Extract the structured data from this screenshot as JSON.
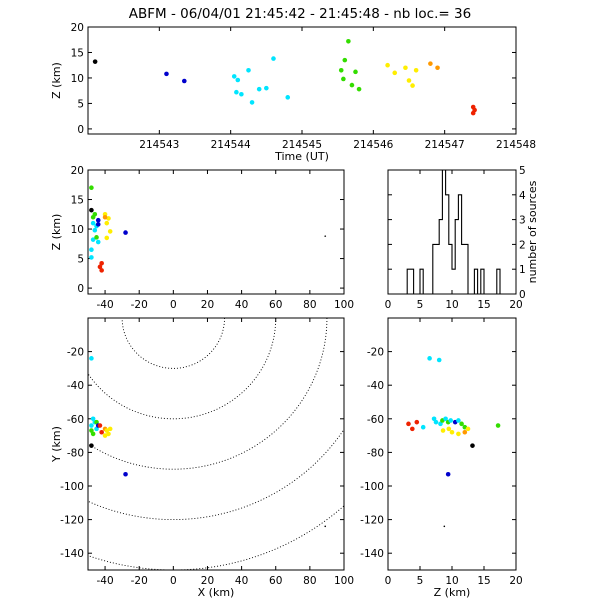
{
  "header": {
    "title": "ABFM - 06/04/01 21:45:42 - 21:45:48 - nb loc.=      36"
  },
  "colors": {
    "black": "#000000",
    "blue": "#0000cc",
    "cyan": "#00e5ff",
    "green": "#33dd00",
    "yellow": "#ffee00",
    "orange": "#ff9900",
    "red": "#ee2200"
  },
  "chart_data": [
    {
      "id": "time-height",
      "type": "scatter",
      "xlabel": "Time (UT)",
      "ylabel": "Z (km)",
      "xlim": [
        214542,
        214548
      ],
      "ylim": [
        -1,
        20
      ],
      "xticks": [
        214543,
        214544,
        214545,
        214546,
        214547,
        214548
      ],
      "yticks": [
        0,
        5,
        10,
        15,
        20
      ],
      "points": [
        {
          "x": 214542.1,
          "y": 13.2,
          "c": "black"
        },
        {
          "x": 214543.1,
          "y": 10.8,
          "c": "blue"
        },
        {
          "x": 214543.35,
          "y": 9.4,
          "c": "blue"
        },
        {
          "x": 214544.05,
          "y": 10.3,
          "c": "cyan"
        },
        {
          "x": 214544.1,
          "y": 9.6,
          "c": "cyan"
        },
        {
          "x": 214544.08,
          "y": 7.2,
          "c": "cyan"
        },
        {
          "x": 214544.15,
          "y": 6.8,
          "c": "cyan"
        },
        {
          "x": 214544.25,
          "y": 11.5,
          "c": "cyan"
        },
        {
          "x": 214544.3,
          "y": 5.2,
          "c": "cyan"
        },
        {
          "x": 214544.4,
          "y": 7.8,
          "c": "cyan"
        },
        {
          "x": 214544.5,
          "y": 8.0,
          "c": "cyan"
        },
        {
          "x": 214544.6,
          "y": 13.8,
          "c": "cyan"
        },
        {
          "x": 214544.8,
          "y": 6.2,
          "c": "cyan"
        },
        {
          "x": 214545.55,
          "y": 11.5,
          "c": "green"
        },
        {
          "x": 214545.6,
          "y": 13.5,
          "c": "green"
        },
        {
          "x": 214545.65,
          "y": 17.2,
          "c": "green"
        },
        {
          "x": 214545.58,
          "y": 9.8,
          "c": "green"
        },
        {
          "x": 214545.7,
          "y": 8.6,
          "c": "green"
        },
        {
          "x": 214545.75,
          "y": 11.2,
          "c": "green"
        },
        {
          "x": 214545.8,
          "y": 7.8,
          "c": "green"
        },
        {
          "x": 214546.2,
          "y": 12.5,
          "c": "yellow"
        },
        {
          "x": 214546.3,
          "y": 11.0,
          "c": "yellow"
        },
        {
          "x": 214546.45,
          "y": 12.0,
          "c": "yellow"
        },
        {
          "x": 214546.5,
          "y": 9.5,
          "c": "yellow"
        },
        {
          "x": 214546.55,
          "y": 8.5,
          "c": "yellow"
        },
        {
          "x": 214546.6,
          "y": 11.5,
          "c": "yellow"
        },
        {
          "x": 214546.8,
          "y": 12.8,
          "c": "orange"
        },
        {
          "x": 214546.9,
          "y": 12.0,
          "c": "orange"
        },
        {
          "x": 214547.4,
          "y": 4.3,
          "c": "red"
        },
        {
          "x": 214547.42,
          "y": 3.7,
          "c": "red"
        },
        {
          "x": 214547.4,
          "y": 3.1,
          "c": "red"
        }
      ]
    },
    {
      "id": "x-height",
      "type": "scatter",
      "xlabel": "",
      "ylabel": "Z (km)",
      "xlim": [
        -50,
        100
      ],
      "ylim": [
        -1,
        20
      ],
      "xticks": [
        -40,
        -20,
        0,
        20,
        40,
        60,
        80,
        100
      ],
      "yticks": [
        0,
        5,
        10,
        15,
        20
      ],
      "points": [
        {
          "x": -48,
          "y": 17.0,
          "c": "green"
        },
        {
          "x": -48,
          "y": 13.2,
          "c": "black"
        },
        {
          "x": -46,
          "y": 12.5,
          "c": "green"
        },
        {
          "x": -47,
          "y": 11.0,
          "c": "cyan"
        },
        {
          "x": -45,
          "y": 10.5,
          "c": "cyan"
        },
        {
          "x": -46,
          "y": 9.8,
          "c": "cyan"
        },
        {
          "x": -47,
          "y": 8.2,
          "c": "cyan"
        },
        {
          "x": -48,
          "y": 6.5,
          "c": "cyan"
        },
        {
          "x": -48,
          "y": 5.2,
          "c": "cyan"
        },
        {
          "x": -44,
          "y": 7.8,
          "c": "cyan"
        },
        {
          "x": -44,
          "y": 11.5,
          "c": "blue"
        },
        {
          "x": -44,
          "y": 10.8,
          "c": "blue"
        },
        {
          "x": -28,
          "y": 9.4,
          "c": "blue"
        },
        {
          "x": -47,
          "y": 12.0,
          "c": "green"
        },
        {
          "x": -45,
          "y": 8.6,
          "c": "green"
        },
        {
          "x": -40,
          "y": 12.5,
          "c": "yellow"
        },
        {
          "x": -38,
          "y": 11.8,
          "c": "yellow"
        },
        {
          "x": -39,
          "y": 11.0,
          "c": "yellow"
        },
        {
          "x": -37,
          "y": 9.6,
          "c": "yellow"
        },
        {
          "x": -39,
          "y": 8.5,
          "c": "yellow"
        },
        {
          "x": -40,
          "y": 12.0,
          "c": "orange"
        },
        {
          "x": -42,
          "y": 4.2,
          "c": "red"
        },
        {
          "x": -43,
          "y": 3.6,
          "c": "red"
        },
        {
          "x": -42,
          "y": 3.0,
          "c": "red"
        },
        {
          "x": 89,
          "y": 8.8,
          "c": "black",
          "r": 0.8
        }
      ]
    },
    {
      "id": "height-histogram",
      "type": "bar",
      "xlabel": "",
      "ylabel": "number of sources",
      "xlim": [
        0,
        20
      ],
      "ylim": [
        0,
        5
      ],
      "xticks": [
        0,
        5,
        10,
        15,
        20
      ],
      "yticks": [
        0,
        1,
        2,
        3,
        4,
        5
      ],
      "bin_width": 0.5,
      "bin_start": 0,
      "counts": [
        0,
        0,
        0,
        0,
        0,
        0,
        1,
        1,
        0,
        0,
        1,
        0,
        0,
        0,
        2,
        2,
        3,
        5,
        4,
        2,
        1,
        3,
        4,
        2,
        2,
        0,
        0,
        1,
        0,
        1,
        0,
        0,
        0,
        0,
        1,
        0,
        0,
        0,
        0,
        0
      ]
    },
    {
      "id": "plan-view",
      "type": "scatter",
      "xlabel": "X (km)",
      "ylabel": "Y (km)",
      "xlim": [
        -50,
        100
      ],
      "ylim": [
        -150,
        0
      ],
      "xticks": [
        -40,
        -20,
        0,
        20,
        40,
        60,
        80,
        100
      ],
      "yticks": [
        -20,
        -40,
        -60,
        -80,
        -100,
        -120,
        -140
      ],
      "range_rings": {
        "center": [
          0,
          0
        ],
        "radii": [
          30,
          60,
          90,
          120,
          150
        ]
      },
      "points": [
        {
          "x": -48,
          "y": -24,
          "c": "cyan"
        },
        {
          "x": -47,
          "y": -60,
          "c": "cyan"
        },
        {
          "x": -46,
          "y": -62,
          "c": "cyan"
        },
        {
          "x": -48,
          "y": -64,
          "c": "cyan"
        },
        {
          "x": -45,
          "y": -66,
          "c": "cyan"
        },
        {
          "x": -47,
          "y": -69,
          "c": "green"
        },
        {
          "x": -45,
          "y": -62,
          "c": "green"
        },
        {
          "x": -48,
          "y": -67,
          "c": "green"
        },
        {
          "x": -48,
          "y": -76,
          "c": "black"
        },
        {
          "x": -44,
          "y": -64,
          "c": "blue"
        },
        {
          "x": -42,
          "y": -68,
          "c": "red"
        },
        {
          "x": -43,
          "y": -64,
          "c": "red"
        },
        {
          "x": -40,
          "y": -66,
          "c": "orange"
        },
        {
          "x": -39,
          "y": -67,
          "c": "yellow"
        },
        {
          "x": -38,
          "y": -69,
          "c": "yellow"
        },
        {
          "x": -40,
          "y": -70,
          "c": "yellow"
        },
        {
          "x": -37,
          "y": -66,
          "c": "yellow"
        },
        {
          "x": -28,
          "y": -93,
          "c": "blue"
        },
        {
          "x": 89,
          "y": -124,
          "c": "black",
          "r": 0.8
        }
      ]
    },
    {
      "id": "height-y",
      "type": "scatter",
      "xlabel": "Z (km)",
      "ylabel": "",
      "xlim": [
        0,
        20
      ],
      "ylim": [
        -150,
        0
      ],
      "xticks": [
        0,
        5,
        10,
        15,
        20
      ],
      "yticks": [
        -20,
        -40,
        -60,
        -80,
        -100,
        -120,
        -140
      ],
      "points": [
        {
          "x": 6.5,
          "y": -24,
          "c": "cyan"
        },
        {
          "x": 8.0,
          "y": -25,
          "c": "cyan"
        },
        {
          "x": 3.2,
          "y": -63,
          "c": "red"
        },
        {
          "x": 3.8,
          "y": -66,
          "c": "red"
        },
        {
          "x": 4.5,
          "y": -62,
          "c": "red"
        },
        {
          "x": 5.5,
          "y": -65,
          "c": "cyan"
        },
        {
          "x": 7.2,
          "y": -60,
          "c": "cyan"
        },
        {
          "x": 7.5,
          "y": -62,
          "c": "cyan"
        },
        {
          "x": 8.2,
          "y": -63,
          "c": "cyan"
        },
        {
          "x": 8.5,
          "y": -61,
          "c": "green"
        },
        {
          "x": 9.0,
          "y": -60,
          "c": "cyan"
        },
        {
          "x": 9.4,
          "y": -62,
          "c": "green"
        },
        {
          "x": 9.8,
          "y": -61,
          "c": "cyan"
        },
        {
          "x": 10.5,
          "y": -62,
          "c": "blue"
        },
        {
          "x": 11.0,
          "y": -61,
          "c": "cyan"
        },
        {
          "x": 11.5,
          "y": -63,
          "c": "green"
        },
        {
          "x": 12.0,
          "y": -65,
          "c": "green"
        },
        {
          "x": 8.6,
          "y": -67,
          "c": "yellow"
        },
        {
          "x": 9.5,
          "y": -66,
          "c": "yellow"
        },
        {
          "x": 10.0,
          "y": -68,
          "c": "yellow"
        },
        {
          "x": 11.0,
          "y": -69,
          "c": "yellow"
        },
        {
          "x": 12.0,
          "y": -68,
          "c": "orange"
        },
        {
          "x": 12.5,
          "y": -66,
          "c": "yellow"
        },
        {
          "x": 13.2,
          "y": -76,
          "c": "black"
        },
        {
          "x": 17.2,
          "y": -64,
          "c": "green"
        },
        {
          "x": 9.4,
          "y": -93,
          "c": "blue"
        },
        {
          "x": 8.8,
          "y": -124,
          "c": "black",
          "r": 0.8
        }
      ]
    }
  ]
}
